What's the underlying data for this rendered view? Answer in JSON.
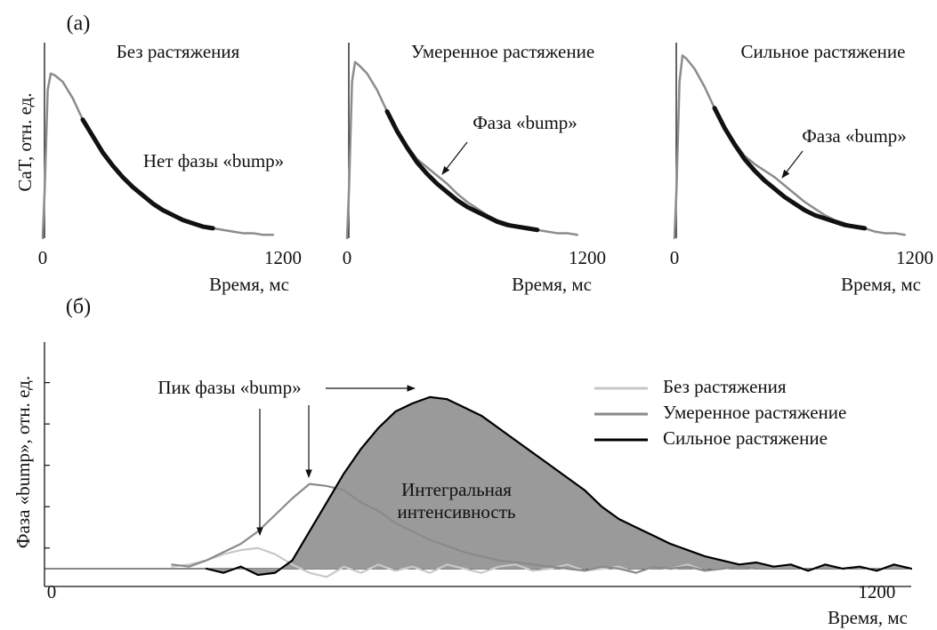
{
  "chart_data": [
    {
      "type": "line",
      "panel_label": "(a)",
      "title": "Без растяжения",
      "ylabel": "CaT, отн. ед.",
      "xlabel": "Время, мс",
      "annotation": "Нет фазы «bump»",
      "x": [
        0,
        10,
        25,
        40,
        60,
        100,
        150,
        200,
        250,
        300,
        350,
        400,
        450,
        500,
        550,
        600,
        650,
        700,
        750,
        800,
        850,
        900,
        950,
        1000,
        1050,
        1100,
        1150
      ],
      "series": [
        {
          "color": "#8c8c8c",
          "width": 2.5,
          "values": [
            0,
            0.3,
            0.9,
            1.0,
            0.99,
            0.95,
            0.85,
            0.72,
            0.62,
            0.52,
            0.44,
            0.37,
            0.31,
            0.26,
            0.21,
            0.17,
            0.14,
            0.11,
            0.09,
            0.07,
            0.06,
            0.05,
            0.04,
            0.03,
            0.03,
            0.02,
            0.02
          ]
        },
        {
          "color": "#111111",
          "width": 5,
          "values": [
            null,
            null,
            null,
            null,
            null,
            null,
            null,
            0.72,
            0.62,
            0.52,
            0.44,
            0.37,
            0.31,
            0.26,
            0.21,
            0.17,
            0.14,
            0.11,
            0.09,
            0.07,
            0.06,
            null,
            null,
            null,
            null,
            null,
            null
          ]
        }
      ],
      "xlim": [
        0,
        1200
      ],
      "xticks": [
        0,
        1200
      ],
      "ylim": [
        0,
        1.15
      ]
    },
    {
      "type": "line",
      "title": "Умеренное растяжение",
      "xlabel": "Время, мс",
      "annotation": "Фаза «bump»",
      "x": [
        0,
        10,
        25,
        40,
        60,
        100,
        150,
        200,
        250,
        300,
        350,
        400,
        450,
        500,
        550,
        600,
        650,
        700,
        750,
        800,
        850,
        900,
        950,
        1000,
        1050,
        1100,
        1150
      ],
      "series": [
        {
          "color": "#8c8c8c",
          "width": 2.5,
          "values": [
            0,
            0.3,
            0.95,
            1.07,
            1.05,
            1.0,
            0.9,
            0.77,
            0.66,
            0.56,
            0.48,
            0.43,
            0.38,
            0.33,
            0.27,
            0.22,
            0.18,
            0.14,
            0.11,
            0.09,
            0.07,
            0.06,
            0.05,
            0.04,
            0.03,
            0.03,
            0.02
          ]
        },
        {
          "color": "#111111",
          "width": 5,
          "values": [
            null,
            null,
            null,
            null,
            null,
            null,
            null,
            0.77,
            0.65,
            0.55,
            0.46,
            0.39,
            0.33,
            0.28,
            0.23,
            0.19,
            0.16,
            0.13,
            0.1,
            0.08,
            0.07,
            0.06,
            0.05,
            null,
            null,
            null,
            null
          ]
        }
      ],
      "xlim": [
        0,
        1200
      ],
      "xticks": [
        0,
        1200
      ],
      "ylim": [
        0,
        1.15
      ]
    },
    {
      "type": "line",
      "title": "Сильное растяжение",
      "xlabel": "Время, мс",
      "annotation": "Фаза «bump»",
      "x": [
        0,
        10,
        25,
        40,
        60,
        100,
        150,
        200,
        250,
        300,
        350,
        400,
        450,
        500,
        550,
        600,
        650,
        700,
        750,
        800,
        850,
        900,
        950,
        1000,
        1050,
        1100,
        1150
      ],
      "series": [
        {
          "color": "#8c8c8c",
          "width": 2.5,
          "values": [
            0,
            0.3,
            0.95,
            1.11,
            1.09,
            1.03,
            0.92,
            0.79,
            0.68,
            0.58,
            0.5,
            0.45,
            0.41,
            0.37,
            0.32,
            0.27,
            0.22,
            0.18,
            0.14,
            0.11,
            0.09,
            0.07,
            0.06,
            0.04,
            0.03,
            0.03,
            0.02
          ]
        },
        {
          "color": "#111111",
          "width": 5,
          "values": [
            null,
            null,
            null,
            null,
            null,
            null,
            null,
            0.79,
            0.67,
            0.57,
            0.48,
            0.41,
            0.35,
            0.3,
            0.25,
            0.21,
            0.17,
            0.14,
            0.12,
            0.1,
            0.08,
            0.07,
            0.06,
            null,
            null,
            null,
            null
          ]
        }
      ],
      "xlim": [
        0,
        1200
      ],
      "xticks": [
        0,
        1200
      ],
      "ylim": [
        0,
        1.15
      ]
    },
    {
      "type": "line",
      "panel_label": "(б)",
      "ylabel": "Фаза «bump», отн. ед.",
      "xlabel": "Время, мс",
      "annotation": "Пик фазы «bump»",
      "area_label": [
        "Интегральная",
        "интенсивность"
      ],
      "legend": "top-right",
      "zero_line": true,
      "x": [
        150,
        175,
        200,
        225,
        250,
        275,
        300,
        325,
        350,
        375,
        400,
        425,
        450,
        475,
        500,
        525,
        550,
        575,
        600,
        625,
        650,
        675,
        700,
        725,
        750,
        775,
        800,
        825,
        850,
        875,
        900,
        925,
        950,
        975,
        1000,
        1025,
        1050,
        1075,
        1100,
        1125,
        1150,
        1175,
        1200,
        1225,
        1250
      ],
      "series": [
        {
          "name": "Без растяжения",
          "color": "#c8c8c8",
          "values": [
            null,
            0.05,
            0.1,
            0.2,
            0.35,
            0.45,
            0.5,
            0.35,
            0.1,
            -0.1,
            -0.2,
            0.05,
            -0.1,
            0.1,
            -0.05,
            0.05,
            -0.1,
            0.1,
            0,
            -0.1,
            0.05,
            0.1,
            -0.05,
            0,
            0.1,
            -0.05,
            0,
            0.05,
            -0.1,
            0.05,
            0,
            0.1,
            -0.05,
            0,
            0.05,
            null,
            null,
            null,
            null,
            null,
            null,
            null,
            null,
            null,
            null
          ]
        },
        {
          "name": "Умеренное растяжение",
          "color": "#8a8a8a",
          "values": [
            null,
            0.1,
            0.05,
            0.2,
            0.4,
            0.6,
            0.9,
            1.3,
            1.7,
            2.05,
            2.0,
            1.9,
            1.6,
            1.4,
            1.1,
            0.9,
            0.7,
            0.55,
            0.4,
            0.3,
            0.2,
            0.15,
            0.1,
            0.05,
            0,
            -0.05,
            0.05,
            0,
            -0.1,
            0.05,
            0,
            0.05,
            -0.05,
            0,
            0.05,
            0,
            null,
            null,
            null,
            null,
            null,
            null,
            null,
            null,
            null
          ]
        },
        {
          "name": "Сильное растяжение",
          "color": "#000000",
          "fill": "#9a9a9a",
          "values": [
            null,
            null,
            null,
            0,
            -0.1,
            0.05,
            -0.15,
            -0.1,
            0.2,
            0.9,
            1.6,
            2.3,
            2.9,
            3.4,
            3.8,
            4.0,
            4.15,
            4.1,
            3.9,
            3.7,
            3.4,
            3.1,
            2.8,
            2.5,
            2.2,
            1.9,
            1.5,
            1.2,
            1.0,
            0.8,
            0.6,
            0.45,
            0.3,
            0.2,
            0.1,
            0.15,
            0.05,
            0.1,
            -0.05,
            0.1,
            0,
            0.05,
            -0.05,
            0.1,
            0
          ]
        }
      ],
      "xlim": [
        0,
        1250
      ],
      "xticks": [
        0,
        1200
      ],
      "ylim": [
        -0.43,
        5.48
      ],
      "yticks": [
        0.5,
        1.5,
        2.5,
        3.5,
        4.5
      ]
    }
  ]
}
